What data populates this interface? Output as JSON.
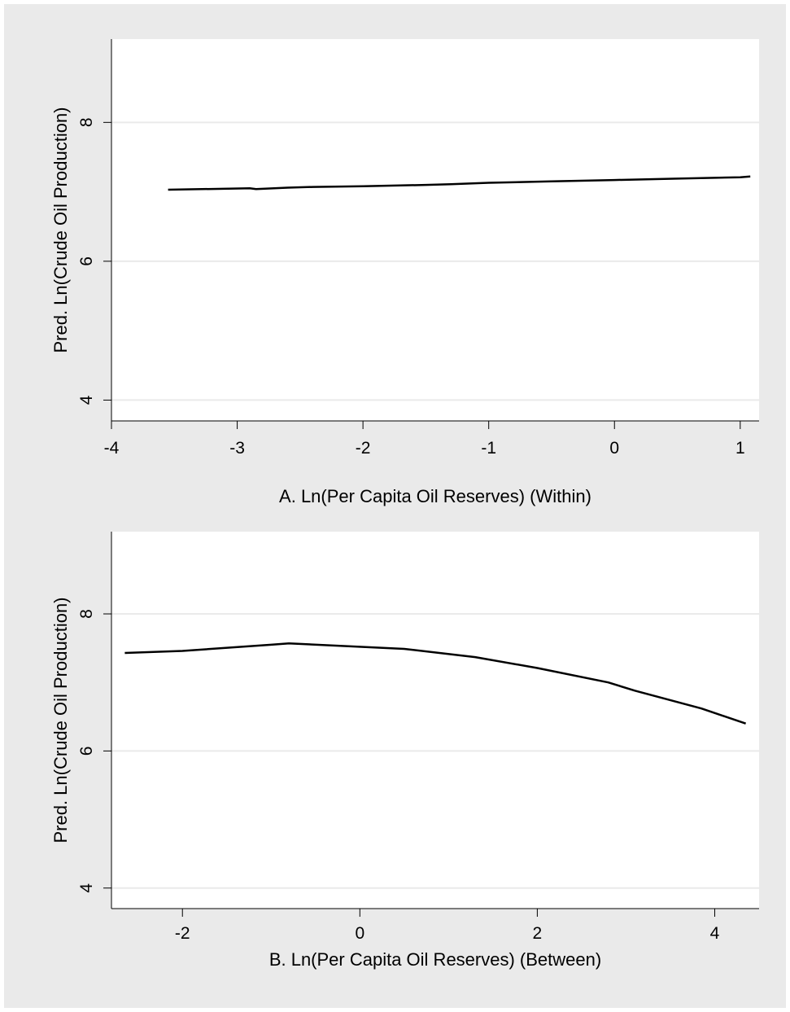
{
  "colors": {
    "background": "#eaeaea",
    "plot_region": "#ffffff",
    "gridline": "#eaeaea",
    "line": "#000000"
  },
  "chart_data": [
    {
      "type": "line",
      "title": "",
      "xlabel": "A. Ln(Per Capita Oil Reserves) (Within)",
      "ylabel": "Pred. Ln(Crude Oil Production)",
      "xlim": [
        -4.0,
        1.15
      ],
      "ylim": [
        3.7,
        9.2
      ],
      "xticks": [
        -4,
        -3,
        -2,
        -1,
        0,
        1
      ],
      "xtick_labels": [
        "-4",
        "-3",
        "-2",
        "-1",
        "0",
        "1"
      ],
      "yticks": [
        4,
        6,
        8
      ],
      "ytick_labels": [
        "4",
        "6",
        "8"
      ],
      "grid": "horizontal",
      "series": [
        {
          "x": [
            -3.55,
            -2.9,
            -2.85,
            -2.6,
            -2.4,
            -2.0,
            -1.5,
            -1.3,
            -1.0,
            -0.5,
            0.0,
            0.5,
            1.0,
            1.08
          ],
          "y": [
            7.03,
            7.05,
            7.04,
            7.06,
            7.07,
            7.08,
            7.1,
            7.11,
            7.13,
            7.15,
            7.17,
            7.19,
            7.21,
            7.22
          ]
        }
      ]
    },
    {
      "type": "line",
      "title": "",
      "xlabel": "B. Ln(Per Capita Oil Reserves) (Between)",
      "ylabel": "Pred. Ln(Crude Oil Production)",
      "xlim": [
        -2.8,
        4.5
      ],
      "ylim": [
        3.7,
        9.2
      ],
      "xticks": [
        -2,
        0,
        2,
        4
      ],
      "xtick_labels": [
        "-2",
        "0",
        "2",
        "4"
      ],
      "yticks": [
        4,
        6,
        8
      ],
      "ytick_labels": [
        "4",
        "6",
        "8"
      ],
      "grid": "horizontal",
      "series": [
        {
          "x": [
            -2.65,
            -2.0,
            -1.0,
            -0.8,
            0.5,
            1.3,
            2.0,
            2.8,
            3.1,
            3.85,
            4.35
          ],
          "y": [
            7.43,
            7.46,
            7.55,
            7.57,
            7.49,
            7.37,
            7.21,
            7.0,
            6.88,
            6.62,
            6.4
          ]
        }
      ]
    }
  ]
}
